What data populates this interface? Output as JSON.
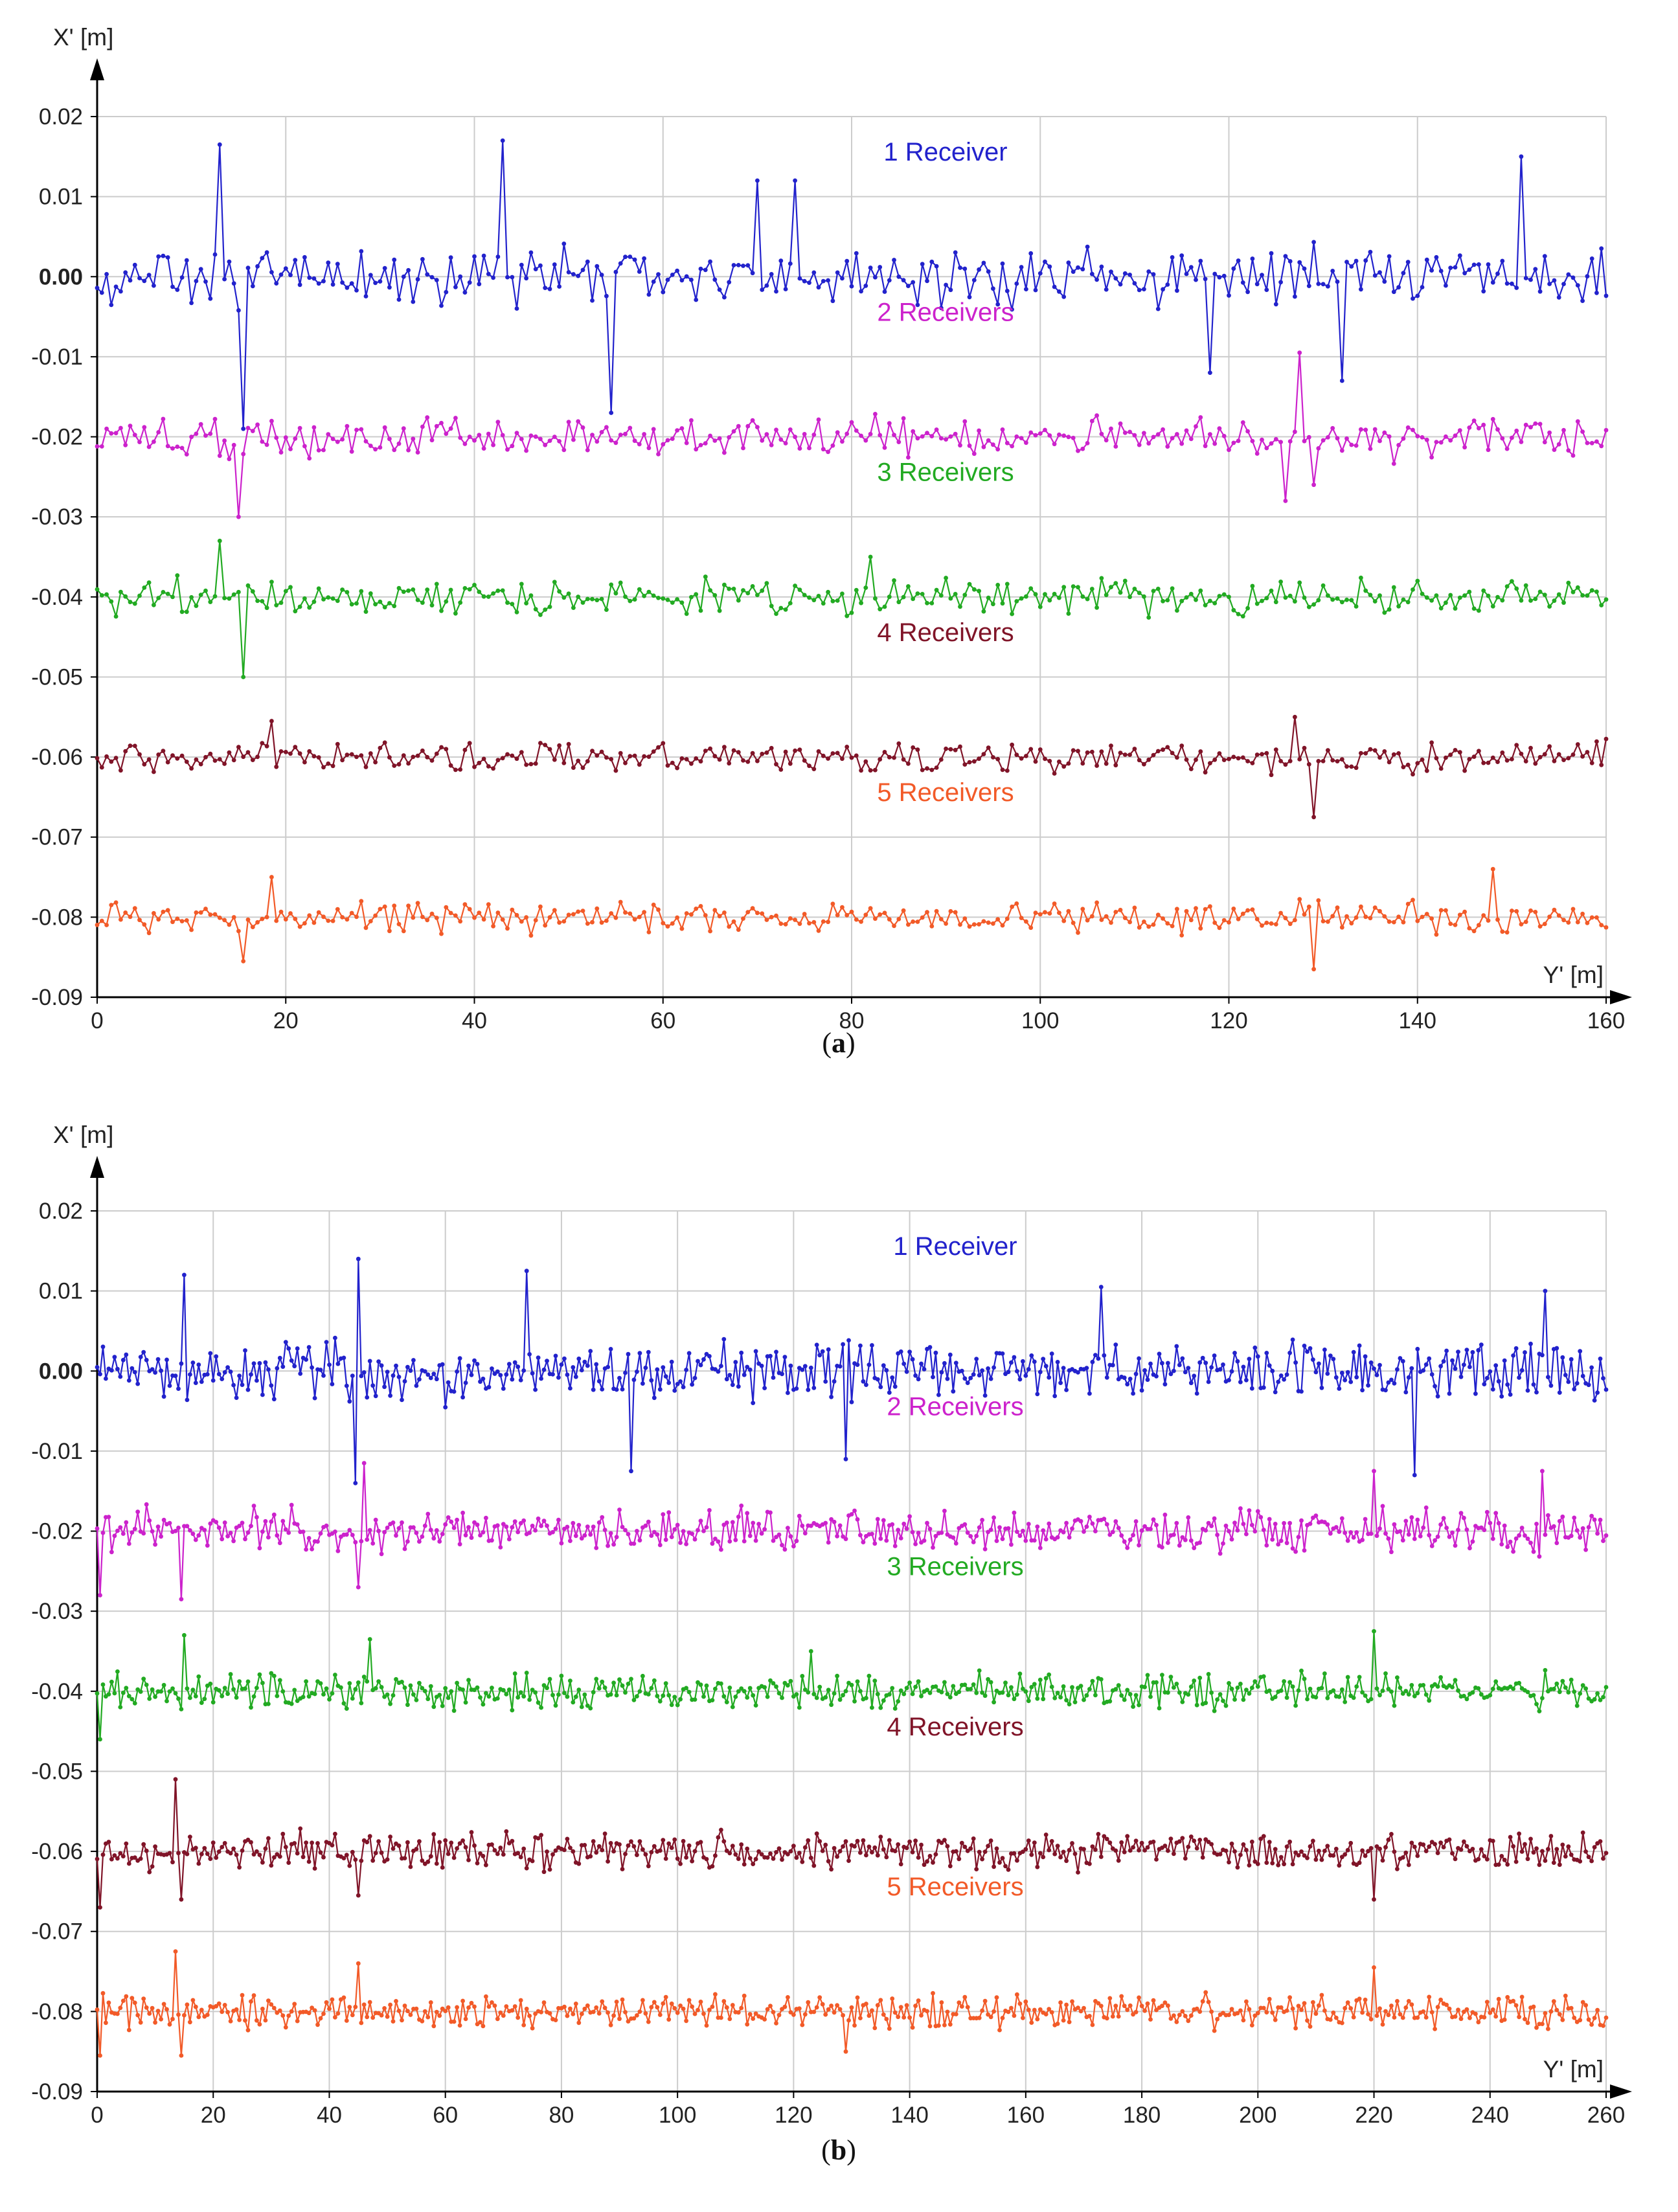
{
  "chart_data": [
    {
      "id": "a",
      "type": "line",
      "caption_letter": "a",
      "xlabel": "Y' [m]",
      "ylabel": "X' [m]",
      "xlim": [
        0,
        160
      ],
      "ylim": [
        -0.09,
        0.02
      ],
      "xticks": [
        0,
        20,
        40,
        60,
        80,
        100,
        120,
        140,
        160
      ],
      "yticks": [
        "0.02",
        "0.01",
        "0.00",
        "-0.01",
        "-0.02",
        "-0.03",
        "-0.04",
        "-0.05",
        "-0.06",
        "-0.07",
        "-0.08",
        "-0.09"
      ],
      "grid": true,
      "sample_step": 0.5,
      "series": [
        {
          "name": "1 Receiver",
          "color": "#2222cc",
          "baseline": 0.0,
          "amplitude": 0.004,
          "spikes": [
            [
              13,
              0.0165
            ],
            [
              43,
              0.017
            ],
            [
              15.5,
              -0.019
            ],
            [
              54.5,
              -0.017
            ],
            [
              70,
              0.012
            ],
            [
              74,
              0.012
            ],
            [
              118,
              -0.012
            ],
            [
              132,
              -0.013
            ],
            [
              151,
              0.015
            ]
          ]
        },
        {
          "name": "2 Receivers",
          "color": "#cc22cc",
          "baseline": -0.02,
          "amplitude": 0.0028,
          "spikes": [
            [
              15,
              -0.03
            ],
            [
              127.5,
              -0.0095
            ],
            [
              126,
              -0.028
            ],
            [
              129,
              -0.026
            ]
          ]
        },
        {
          "name": "3 Receivers",
          "color": "#22aa22",
          "baseline": -0.04,
          "amplitude": 0.0025,
          "spikes": [
            [
              15.5,
              -0.05
            ],
            [
              13,
              -0.033
            ],
            [
              82,
              -0.035
            ]
          ]
        },
        {
          "name": "4 Receivers",
          "color": "#801428",
          "baseline": -0.06,
          "amplitude": 0.0022,
          "spikes": [
            [
              18.5,
              -0.0555
            ],
            [
              129,
              -0.0675
            ],
            [
              127,
              -0.055
            ]
          ]
        },
        {
          "name": "5 Receivers",
          "color": "#f25a28",
          "baseline": -0.08,
          "amplitude": 0.0022,
          "spikes": [
            [
              18.5,
              -0.075
            ],
            [
              15.5,
              -0.0855
            ],
            [
              129,
              -0.0865
            ],
            [
              148,
              -0.074
            ]
          ]
        }
      ]
    },
    {
      "id": "b",
      "type": "line",
      "caption_letter": "b",
      "xlabel": "Y' [m]",
      "ylabel": "X' [m]",
      "xlim": [
        0,
        260
      ],
      "ylim": [
        -0.09,
        0.02
      ],
      "xticks": [
        0,
        20,
        40,
        60,
        80,
        100,
        120,
        140,
        160,
        180,
        200,
        220,
        240,
        260
      ],
      "yticks": [
        "0.02",
        "0.01",
        "0.00",
        "-0.01",
        "-0.02",
        "-0.03",
        "-0.04",
        "-0.05",
        "-0.06",
        "-0.07",
        "-0.08",
        "-0.09"
      ],
      "grid": true,
      "sample_step": 0.5,
      "series": [
        {
          "name": "1 Receiver",
          "color": "#2222cc",
          "baseline": 0.0,
          "amplitude": 0.004,
          "spikes": [
            [
              15,
              0.012
            ],
            [
              45,
              0.014
            ],
            [
              44.5,
              -0.014
            ],
            [
              74,
              0.0125
            ],
            [
              92,
              -0.0125
            ],
            [
              129,
              -0.011
            ],
            [
              173,
              0.0105
            ],
            [
              227,
              -0.013
            ],
            [
              249.5,
              0.01
            ]
          ]
        },
        {
          "name": "2 Receivers",
          "color": "#cc22cc",
          "baseline": -0.02,
          "amplitude": 0.003,
          "spikes": [
            [
              0.5,
              -0.028
            ],
            [
              14.5,
              -0.0285
            ],
            [
              45,
              -0.027
            ],
            [
              46,
              -0.0115
            ],
            [
              220,
              -0.0125
            ],
            [
              249,
              -0.0125
            ]
          ]
        },
        {
          "name": "3 Receivers",
          "color": "#22aa22",
          "baseline": -0.04,
          "amplitude": 0.0025,
          "spikes": [
            [
              0.5,
              -0.046
            ],
            [
              15,
              -0.033
            ],
            [
              47,
              -0.0335
            ],
            [
              123,
              -0.035
            ],
            [
              220,
              -0.0325
            ]
          ]
        },
        {
          "name": "4 Receivers",
          "color": "#801428",
          "baseline": -0.06,
          "amplitude": 0.0025,
          "spikes": [
            [
              0.5,
              -0.067
            ],
            [
              13.5,
              -0.051
            ],
            [
              14.5,
              -0.066
            ],
            [
              45,
              -0.0655
            ],
            [
              220,
              -0.066
            ]
          ]
        },
        {
          "name": "5 Receivers",
          "color": "#f25a28",
          "baseline": -0.08,
          "amplitude": 0.0025,
          "spikes": [
            [
              0.5,
              -0.0855
            ],
            [
              13.5,
              -0.0725
            ],
            [
              14.5,
              -0.0855
            ],
            [
              45,
              -0.074
            ],
            [
              129,
              -0.085
            ],
            [
              220,
              -0.0745
            ]
          ]
        }
      ]
    }
  ]
}
